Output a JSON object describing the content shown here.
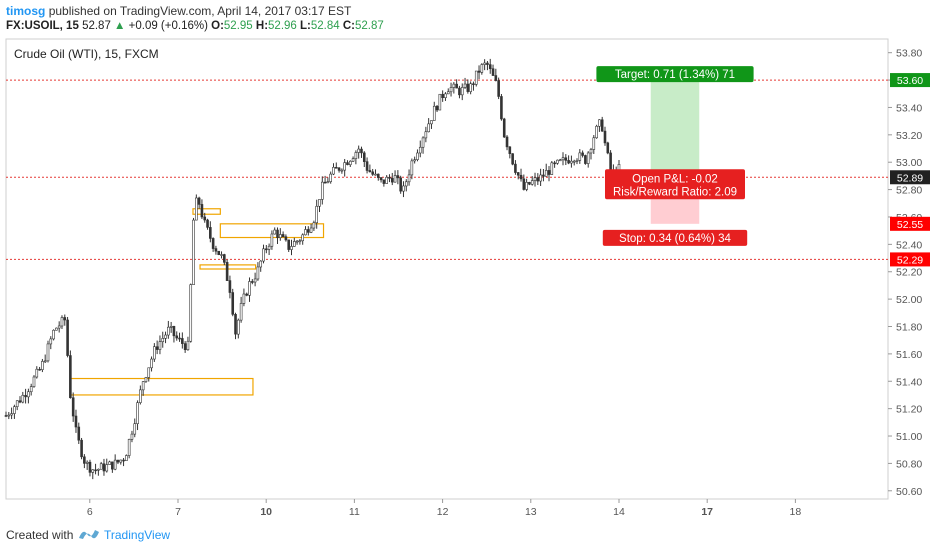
{
  "header": {
    "user": "timosg",
    "published_text": "published on TradingView.com, April 14, 2017 03:17 EST",
    "symbol": "FX:USOIL, 15",
    "last": "52.87",
    "change": "+0.09 (+0.16%)",
    "o_label": "O:",
    "o_value": "52.95",
    "h_label": "H:",
    "h_value": "52.96",
    "l_label": "L:",
    "l_value": "52.84",
    "c_label": "C:",
    "c_value": "52.87"
  },
  "footer": {
    "created": "Created with",
    "brand": "TradingView"
  },
  "chart_data": {
    "type": "candlestick",
    "title": "Crude Oil (WTI), 15, FXCM",
    "x_ticks": [
      {
        "label": "6",
        "day": 6,
        "bold": false
      },
      {
        "label": "7",
        "day": 7,
        "bold": false
      },
      {
        "label": "10",
        "day": 8,
        "bold": true
      },
      {
        "label": "11",
        "day": 9,
        "bold": false
      },
      {
        "label": "12",
        "day": 10,
        "bold": false
      },
      {
        "label": "13",
        "day": 11,
        "bold": false
      },
      {
        "label": "14",
        "day": 12,
        "bold": false
      },
      {
        "label": "17",
        "day": 13,
        "bold": true
      },
      {
        "label": "18",
        "day": 14,
        "bold": false
      }
    ],
    "y_ticks": [
      "53.80",
      "53.60",
      "53.40",
      "53.20",
      "53.00",
      "52.80",
      "52.60",
      "52.40",
      "52.20",
      "52.00",
      "51.80",
      "51.60",
      "51.40",
      "51.20",
      "51.00",
      "50.80",
      "50.60"
    ],
    "ylim": [
      50.54,
      53.9
    ],
    "xlim": [
      5.05,
      15.05
    ],
    "price_path": [
      [
        5.05,
        51.15
      ],
      [
        5.25,
        51.3
      ],
      [
        5.45,
        51.5
      ],
      [
        5.6,
        51.78
      ],
      [
        5.72,
        51.85
      ],
      [
        5.78,
        51.3
      ],
      [
        5.85,
        51.0
      ],
      [
        5.95,
        50.8
      ],
      [
        6.05,
        50.75
      ],
      [
        6.3,
        50.8
      ],
      [
        6.4,
        50.85
      ],
      [
        6.5,
        51.1
      ],
      [
        6.6,
        51.4
      ],
      [
        6.75,
        51.65
      ],
      [
        6.9,
        51.78
      ],
      [
        7.0,
        51.7
      ],
      [
        7.12,
        51.65
      ],
      [
        7.17,
        52.55
      ],
      [
        7.22,
        52.75
      ],
      [
        7.3,
        52.55
      ],
      [
        7.4,
        52.4
      ],
      [
        7.5,
        52.3
      ],
      [
        7.6,
        52.05
      ],
      [
        7.65,
        51.75
      ],
      [
        7.72,
        51.95
      ],
      [
        7.8,
        52.1
      ],
      [
        7.9,
        52.2
      ],
      [
        7.98,
        52.35
      ],
      [
        8.1,
        52.5
      ],
      [
        8.25,
        52.38
      ],
      [
        8.4,
        52.45
      ],
      [
        8.55,
        52.6
      ],
      [
        8.62,
        52.8
      ],
      [
        8.75,
        52.92
      ],
      [
        8.9,
        53.0
      ],
      [
        9.05,
        53.1
      ],
      [
        9.15,
        52.95
      ],
      [
        9.3,
        52.85
      ],
      [
        9.45,
        52.9
      ],
      [
        9.55,
        52.78
      ],
      [
        9.65,
        53.0
      ],
      [
        9.78,
        53.2
      ],
      [
        9.92,
        53.4
      ],
      [
        10.05,
        53.55
      ],
      [
        10.2,
        53.52
      ],
      [
        10.32,
        53.55
      ],
      [
        10.42,
        53.68
      ],
      [
        10.5,
        53.72
      ],
      [
        10.62,
        53.55
      ],
      [
        10.7,
        53.2
      ],
      [
        10.8,
        53.0
      ],
      [
        10.92,
        52.8
      ],
      [
        11.0,
        52.85
      ],
      [
        11.1,
        52.88
      ],
      [
        11.22,
        52.95
      ],
      [
        11.35,
        53.0
      ],
      [
        11.5,
        53.05
      ],
      [
        11.62,
        53.02
      ],
      [
        11.72,
        53.2
      ],
      [
        11.8,
        53.3
      ],
      [
        11.85,
        53.1
      ],
      [
        11.92,
        52.9
      ],
      [
        12.0,
        52.95
      ]
    ],
    "levels": [
      {
        "name": "target",
        "value": 53.6,
        "label": "53.60",
        "color": "#109618"
      },
      {
        "name": "entry",
        "value": 52.89,
        "label": "52.89",
        "color": "#212121"
      },
      {
        "name": "stop",
        "value": 52.55,
        "label": "52.55",
        "color": "#ff0000"
      },
      {
        "name": "support",
        "value": 52.29,
        "label": "52.29",
        "color": "#ff0000"
      }
    ],
    "hlines": [
      53.6,
      52.89,
      52.29
    ],
    "zones": [
      {
        "x0": 5.78,
        "x1": 7.85,
        "y0": 51.3,
        "y1": 51.42
      },
      {
        "x0": 7.17,
        "x1": 7.48,
        "y0": 52.62,
        "y1": 52.66
      },
      {
        "x0": 7.48,
        "x1": 8.65,
        "y0": 52.45,
        "y1": 52.55
      },
      {
        "x0": 7.25,
        "x1": 7.88,
        "y0": 52.22,
        "y1": 52.25
      }
    ],
    "position": {
      "x0": 12.36,
      "x1": 12.91,
      "target": 53.6,
      "entry": 52.89,
      "stop": 52.55,
      "target_label": "Target: 0.71 (1.34%) 71",
      "pnl_label": "Open P&L: -0.02",
      "rr_label": "Risk/Reward Ratio: 2.09",
      "stop_label": "Stop: 0.34 (0.64%) 34",
      "profit_color": "#c8ecc8",
      "loss_color": "#ffcdd2"
    },
    "colors": {
      "candle": "#333333",
      "level_line": "#e53935",
      "zone": "#f0a500"
    }
  }
}
